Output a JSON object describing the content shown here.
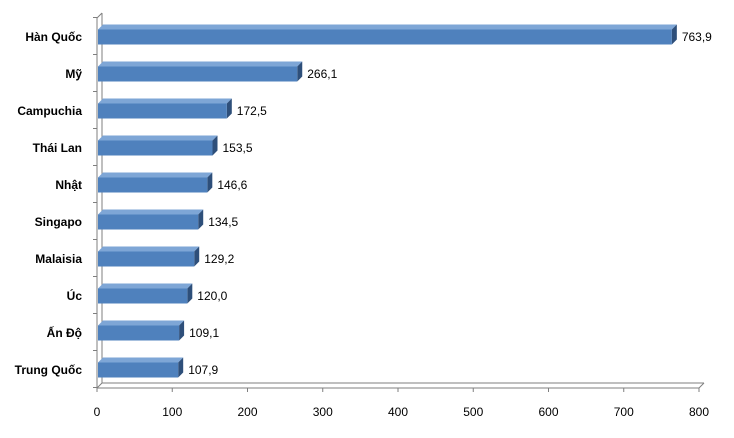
{
  "chart_data": {
    "type": "bar",
    "orientation": "horizontal",
    "categories": [
      "Hàn Quốc",
      "Mỹ",
      "Campuchia",
      "Thái Lan",
      "Nhật",
      "Singapo",
      "Malaisia",
      "Úc",
      "Ấn Độ",
      "Trung Quốc"
    ],
    "values": [
      763.9,
      266.1,
      172.5,
      153.5,
      146.6,
      134.5,
      129.2,
      120.0,
      109.1,
      107.9
    ],
    "value_labels": [
      "763,9",
      "266,1",
      "172,5",
      "153,5",
      "146,6",
      "134,5",
      "129,2",
      "120,0",
      "109,1",
      "107,9"
    ],
    "xlim": [
      0,
      800
    ],
    "xticks": [
      "0",
      "100",
      "200",
      "300",
      "400",
      "500",
      "600",
      "700",
      "800"
    ],
    "title": "",
    "xlabel": "",
    "ylabel": "",
    "grid": false,
    "legend": "none",
    "colors": {
      "bar_front": "#4f81bd",
      "bar_top": "#7ea6d6",
      "bar_side": "#2e4f7a",
      "axis": "#7f7f7f"
    }
  }
}
